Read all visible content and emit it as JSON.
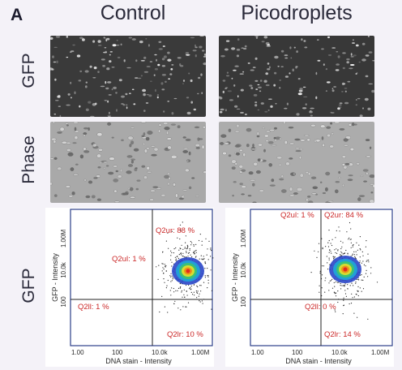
{
  "panel_letter": "A",
  "columns": [
    "Control",
    "Picodroplets"
  ],
  "rows": [
    "GFP",
    "Phase",
    "GFP"
  ],
  "flow_plots": [
    {
      "x_label": "DNA stain - Intensity",
      "y_label": "GFP - Intensity",
      "x_ticks": [
        "1.00",
        "100",
        "10.0k",
        "1.00M"
      ],
      "y_ticks": [
        "1.00M",
        "10.0k",
        "100"
      ],
      "quadrants": {
        "ur": "Q2ur: 88 %",
        "ul": "Q2ul: 1 %",
        "ll": "Q2ll: 1 %",
        "lr": "Q2lr: 10 %"
      }
    },
    {
      "x_label": "DNA stain - Intensity",
      "y_label": "GFP - Intensity",
      "x_ticks": [
        "1.00",
        "100",
        "10.0k",
        "1.00M"
      ],
      "y_ticks": [
        "1.00M",
        "10.0k",
        "100"
      ],
      "quadrants": {
        "ur": "Q2ur: 84 %",
        "ul": "Q2ul: 1 %",
        "ll": "Q2ll: 0 %",
        "lr": "Q2lr: 14 %"
      }
    }
  ]
}
